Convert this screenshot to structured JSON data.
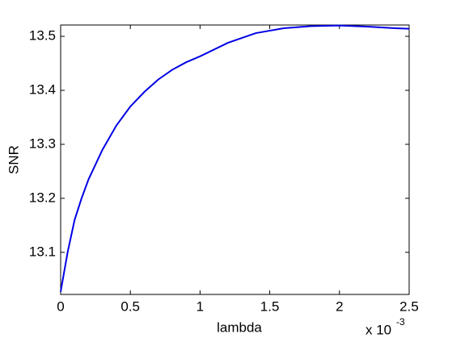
{
  "chart_data": {
    "type": "line",
    "x_label": "lambda",
    "y_label": "SNR",
    "x_multiplier": "x 10",
    "x_exponent": "-3",
    "x": [
      0,
      0.05,
      0.1,
      0.15,
      0.2,
      0.3,
      0.4,
      0.5,
      0.6,
      0.7,
      0.8,
      0.9,
      1.0,
      1.2,
      1.4,
      1.6,
      1.8,
      2.0,
      2.2,
      2.4,
      2.5
    ],
    "series": [
      {
        "color": "#0000e6",
        "values": [
          13.027,
          13.1,
          13.16,
          13.2,
          13.235,
          13.29,
          13.335,
          13.37,
          13.397,
          13.42,
          13.438,
          13.452,
          13.463,
          13.488,
          13.506,
          13.515,
          13.519,
          13.52,
          13.518,
          13.515,
          13.514
        ]
      }
    ],
    "xlim": [
      0,
      2.5
    ],
    "ylim": [
      13.022,
      13.521
    ],
    "xticks": [
      0,
      0.5,
      1,
      1.5,
      2,
      2.5
    ],
    "yticks": [
      13.1,
      13.2,
      13.3,
      13.4,
      13.5
    ],
    "grid": false
  }
}
